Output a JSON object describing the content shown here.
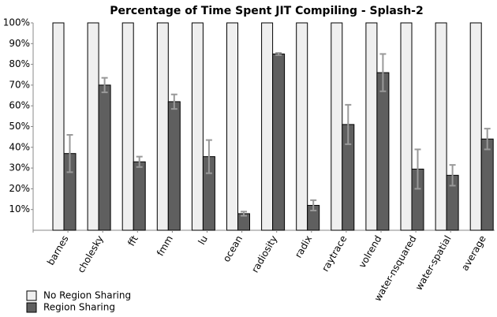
{
  "chart_data": {
    "type": "bar",
    "title": "Percentage of Time Spent JIT Compiling - Splash-2",
    "categories": [
      "barnes",
      "cholesky",
      "fft",
      "fmm",
      "lu",
      "ocean",
      "radiosity",
      "radix",
      "raytrace",
      "volrend",
      "water-nsquared",
      "water-spatial",
      "average"
    ],
    "series": [
      {
        "name": "No Region Sharing",
        "color": "#efefef",
        "values": [
          100,
          100,
          100,
          100,
          100,
          100,
          100,
          100,
          100,
          100,
          100,
          100,
          100
        ]
      },
      {
        "name": "Region Sharing",
        "color": "#5f5f5f",
        "values": [
          37,
          70,
          33,
          62,
          35.5,
          8,
          85,
          12,
          51,
          76,
          29.5,
          26.5,
          44
        ],
        "errors": [
          9,
          3.5,
          2.5,
          3.5,
          8,
          1,
          0.5,
          2.5,
          9.5,
          9,
          9.5,
          5,
          5
        ]
      }
    ],
    "ylim": [
      0,
      100
    ],
    "yticks": [
      {
        "value": 10,
        "label": "10%"
      },
      {
        "value": 20,
        "label": "20%"
      },
      {
        "value": 30,
        "label": "30%"
      },
      {
        "value": 40,
        "label": "40%"
      },
      {
        "value": 50,
        "label": "50%"
      },
      {
        "value": 60,
        "label": "60%"
      },
      {
        "value": 70,
        "label": "70%"
      },
      {
        "value": 80,
        "label": "80%"
      },
      {
        "value": 90,
        "label": "90%"
      },
      {
        "value": 100,
        "label": "100%"
      }
    ],
    "grid": false,
    "legend": "bottom-left"
  }
}
